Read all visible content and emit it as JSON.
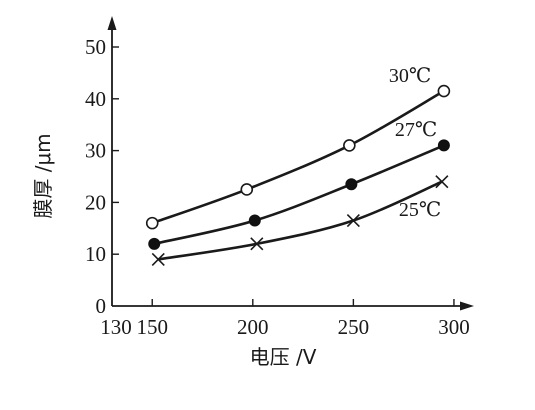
{
  "chart_data": {
    "type": "line",
    "xlabel": "电压 /V",
    "ylabel": "膜厚 /μm",
    "xlim": [
      130,
      305
    ],
    "ylim": [
      0,
      50
    ],
    "x_ticks": [
      130,
      150,
      200,
      250,
      300
    ],
    "y_ticks": [
      0,
      10,
      20,
      30,
      40,
      50
    ],
    "series": [
      {
        "name": "30℃",
        "marker": "open-circle",
        "x": [
          150,
          197,
          248,
          295
        ],
        "y": [
          16,
          22.5,
          31,
          41.5
        ]
      },
      {
        "name": "27℃",
        "marker": "filled-circle",
        "x": [
          151,
          201,
          249,
          295
        ],
        "y": [
          12,
          16.5,
          23.5,
          31
        ]
      },
      {
        "name": "25℃",
        "marker": "cross",
        "x": [
          153,
          202,
          250,
          294
        ],
        "y": [
          9,
          12,
          16.5,
          24
        ]
      }
    ]
  }
}
